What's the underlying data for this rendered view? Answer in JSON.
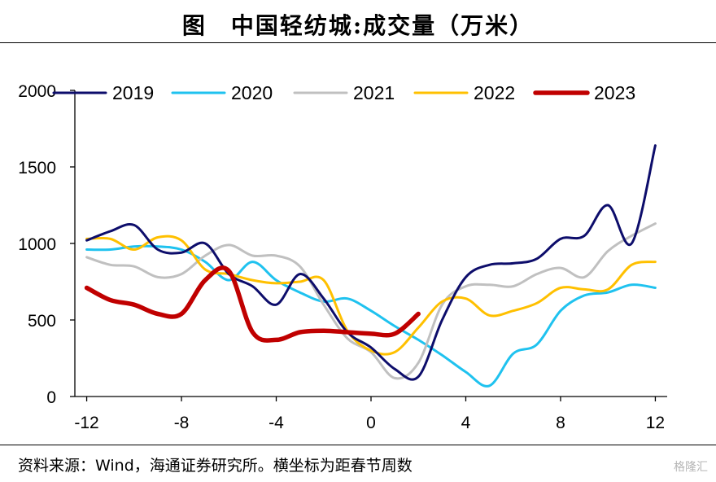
{
  "title": "图　中国轻纺城:成交量（万米）",
  "source": "资料来源：Wind，海通证券研究所。横坐标为距春节周数",
  "watermark": "格隆汇",
  "chart_data": {
    "type": "line",
    "title": "图　中国轻纺城:成交量（万米）",
    "xlabel": "",
    "ylabel": "",
    "xlim": [
      -12.5,
      12.5
    ],
    "ylim": [
      0,
      2000
    ],
    "x_ticks": [
      -12,
      -8,
      -4,
      0,
      4,
      8,
      12
    ],
    "y_ticks": [
      0,
      500,
      1000,
      1500,
      2000
    ],
    "legend_position": "top",
    "grid": false,
    "series": [
      {
        "name": "2019",
        "color": "#0d0d6b",
        "width": 3,
        "x": [
          -12,
          -11,
          -10,
          -9,
          -8,
          -7,
          -6,
          -5,
          -4,
          -3,
          -2,
          -1,
          0,
          1,
          2,
          3,
          4,
          5,
          6,
          7,
          8,
          9,
          10,
          11,
          12
        ],
        "y": [
          1020,
          1080,
          1120,
          960,
          940,
          1000,
          800,
          720,
          600,
          800,
          640,
          420,
          320,
          180,
          130,
          500,
          780,
          860,
          870,
          900,
          1030,
          1050,
          1250,
          1000,
          1640
        ]
      },
      {
        "name": "2020",
        "color": "#1fc2ef",
        "width": 3,
        "x": [
          -12,
          -11,
          -10,
          -9,
          -8,
          -7,
          -6,
          -5,
          -4,
          -3,
          -2,
          -1,
          0,
          1,
          2,
          3,
          4,
          5,
          6,
          7,
          8,
          9,
          10,
          11,
          12
        ],
        "y": [
          960,
          960,
          980,
          980,
          960,
          880,
          760,
          880,
          760,
          680,
          620,
          640,
          560,
          460,
          370,
          270,
          160,
          70,
          280,
          340,
          560,
          660,
          680,
          730,
          710
        ]
      },
      {
        "name": "2021",
        "color": "#c0c0c0",
        "width": 3,
        "x": [
          -12,
          -11,
          -10,
          -9,
          -8,
          -7,
          -6,
          -5,
          -4,
          -3,
          -2,
          -1,
          0,
          1,
          2,
          3,
          4,
          5,
          6,
          7,
          8,
          9,
          10,
          11,
          12
        ],
        "y": [
          910,
          860,
          850,
          780,
          800,
          920,
          990,
          920,
          920,
          850,
          600,
          380,
          290,
          120,
          220,
          600,
          720,
          730,
          720,
          800,
          840,
          780,
          950,
          1050,
          1130
        ]
      },
      {
        "name": "2022",
        "color": "#ffc000",
        "width": 3,
        "x": [
          -12,
          -11,
          -10,
          -9,
          -8,
          -7,
          -6,
          -5,
          -4,
          -3,
          -2,
          -1,
          0,
          1,
          2,
          3,
          4,
          5,
          6,
          7,
          8,
          9,
          10,
          11,
          12
        ],
        "y": [
          1030,
          1030,
          960,
          1040,
          1020,
          830,
          800,
          760,
          740,
          750,
          760,
          430,
          300,
          290,
          450,
          620,
          640,
          530,
          560,
          610,
          710,
          700,
          700,
          860,
          880
        ]
      },
      {
        "name": "2023",
        "color": "#c00000",
        "width": 5.5,
        "x": [
          -12,
          -11,
          -10,
          -9,
          -8,
          -7,
          -6,
          -5,
          -4,
          -3,
          -2,
          -1,
          0,
          1,
          2
        ],
        "y": [
          710,
          630,
          600,
          540,
          540,
          760,
          820,
          420,
          370,
          420,
          430,
          420,
          410,
          410,
          540
        ]
      }
    ]
  }
}
